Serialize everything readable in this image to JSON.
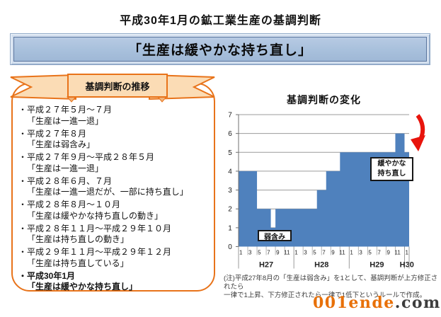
{
  "page": {
    "title": "平成30年1月の鉱工業生産の基調判断",
    "banner_label": "「生産は緩やかな持ち直し」",
    "watermark": {
      "orange": "001ende",
      "dark": ".com"
    }
  },
  "ribbon": {
    "label": "基調判断の推移"
  },
  "history": {
    "items": [
      {
        "date": "・平成２７年５月～７月",
        "judgment": "「生産は一進一退」",
        "bold": false
      },
      {
        "date": "・平成２７年８月",
        "judgment": "「生産は弱含み」",
        "bold": false
      },
      {
        "date": "・平成２７年９月～平成２８年５月",
        "judgment": "「生産は一進一退」",
        "bold": false
      },
      {
        "date": "・平成２８年６月、７月",
        "judgment": "「生産は一進一退だが、一部に持ち直し」",
        "bold": false
      },
      {
        "date": "・平成２８年８月～１０月",
        "judgment": "「生産は緩やかな持ち直しの動き」",
        "bold": false
      },
      {
        "date": "・平成２８年１１月～平成２９年１０月",
        "judgment": "「生産は持ち直しの動き」",
        "bold": false
      },
      {
        "date": "・平成２９年１１月～平成２９年１２月",
        "judgment": "「生産は持ち直している」",
        "bold": false
      },
      {
        "date": "・平成30年1月",
        "judgment": "「生産は緩やかな持ち直し」",
        "bold": true
      }
    ]
  },
  "chart_data": {
    "type": "area",
    "title": "基調判断の変化",
    "ylim": [
      0,
      7
    ],
    "yticks": [
      0,
      1,
      2,
      3,
      4,
      5,
      6,
      7
    ],
    "grid": true,
    "groups": [
      {
        "label": "H27",
        "months": 12,
        "tick_labels": [
          "1",
          "3",
          "5",
          "7",
          "9",
          "11"
        ]
      },
      {
        "label": "H28",
        "months": 12,
        "tick_labels": [
          "1",
          "3",
          "5",
          "7",
          "9",
          "11"
        ]
      },
      {
        "label": "H29",
        "months": 12,
        "tick_labels": [
          "1",
          "3",
          "5",
          "7",
          "9",
          "11"
        ]
      },
      {
        "label": "H30",
        "months": 1,
        "tick_labels": [
          "1"
        ]
      }
    ],
    "values": [
      4,
      4,
      4,
      4,
      2,
      2,
      2,
      1,
      2,
      2,
      2,
      2,
      2,
      2,
      2,
      2,
      2,
      3,
      3,
      4,
      4,
      4,
      5,
      5,
      5,
      5,
      5,
      5,
      5,
      5,
      5,
      5,
      5,
      5,
      6,
      6,
      5
    ],
    "value_rule": "判断ごとの水準: 弱含み=1, 一進一退=2, 一進一退だが一部に持ち直し=3, 緩やかな持ち直しの動き=4, 持ち直しの動き/緩やかな持ち直し=5, 持ち直している=6",
    "series_color": "#4f81bd",
    "arrow_color": "#e8140c",
    "annotations": {
      "low": "弱含み",
      "current_line1": "緩やかな",
      "current_line2": "持ち直し"
    },
    "note_line1": "(注)平成27年8月の「生産は弱含み」を1として、基調判断が上方修正されたら",
    "note_line2": "一律で1上昇、下方修正されたら一律で1低下というルールで作成。"
  }
}
